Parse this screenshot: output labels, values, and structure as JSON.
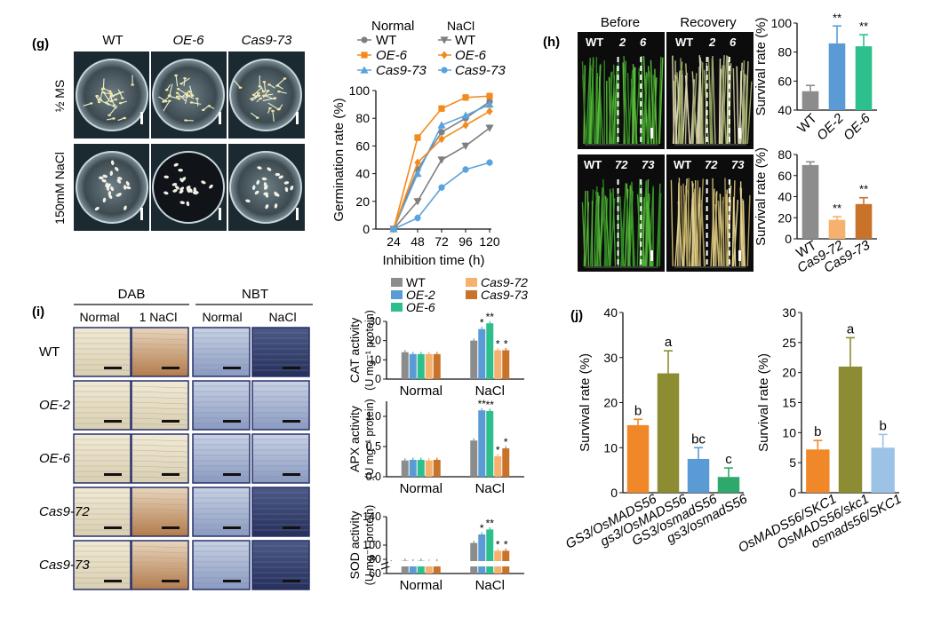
{
  "panels": {
    "g": "(g)",
    "h": "(h)",
    "i": "(i)",
    "j": "(j)"
  },
  "g_photos": {
    "cols": [
      "WT",
      "OE-6",
      "Cas9-73"
    ],
    "rows": [
      "½ MS",
      "150mM NaCl"
    ]
  },
  "g_chart_legend": {
    "normal_title": "Normal",
    "nacl_title": "NaCl",
    "normal_items": [
      "WT",
      "OE-6",
      "Cas9-73"
    ],
    "nacl_items": [
      "WT",
      "OE-6",
      "Cas9-73"
    ]
  },
  "h_photos": {
    "before": "Before",
    "recovery": "Recovery",
    "top_labels": [
      "WT",
      "2",
      "6"
    ],
    "bottom_labels": [
      "WT",
      "72",
      "73"
    ]
  },
  "i_photos": {
    "dab": "DAB",
    "nbt": "NBT",
    "cols": [
      "Normal",
      "1 NaCl",
      "Normal",
      "NaCl"
    ],
    "rows": [
      "WT",
      "OE-2",
      "OE-6",
      "Cas9-72",
      "Cas9-73"
    ]
  },
  "i_legend": [
    "WT",
    "OE-2",
    "OE-6",
    "Cas9-72",
    "Cas9-73"
  ],
  "colors": {
    "wt": "#8c8c8c",
    "oe2": "#5b9bd5",
    "oe6": "#2dbf8c",
    "cas72": "#f5b16d",
    "cas73": "#c8722a",
    "g_wt": "#7f7f7f",
    "g_oe6": "#f28a1e",
    "g_cas73": "#5aa3dc",
    "j_orange": "#f0882a",
    "j_olive": "#8c8c32",
    "j_blue": "#5b9bd5",
    "j_green": "#2fa86b",
    "j2_blue": "#9cc3e6"
  },
  "chart_data": [
    {
      "id": "g-germination",
      "type": "line",
      "xlabel": "Inhibition time (h)",
      "ylabel": "Germination rate (%)",
      "x": [
        24,
        48,
        72,
        96,
        120
      ],
      "ylim": [
        0,
        100
      ],
      "yticks": [
        0,
        20,
        40,
        60,
        80,
        100
      ],
      "series": [
        {
          "name": "WT",
          "group": "Normal",
          "marker": "circle",
          "color": "#7f7f7f",
          "values": [
            0,
            43,
            70,
            80,
            92
          ]
        },
        {
          "name": "OE-6",
          "group": "Normal",
          "marker": "square",
          "color": "#f28a1e",
          "values": [
            0,
            66,
            87,
            95,
            96
          ]
        },
        {
          "name": "Cas9-73",
          "group": "Normal",
          "marker": "triangle",
          "color": "#5aa3dc",
          "values": [
            0,
            40,
            75,
            82,
            90
          ]
        },
        {
          "name": "WT",
          "group": "NaCl",
          "marker": "triangle-down",
          "color": "#7f7f7f",
          "values": [
            0,
            20,
            50,
            60,
            73
          ]
        },
        {
          "name": "OE-6",
          "group": "NaCl",
          "marker": "diamond",
          "color": "#f28a1e",
          "values": [
            0,
            48,
            65,
            75,
            85
          ]
        },
        {
          "name": "Cas9-73",
          "group": "NaCl",
          "marker": "circle",
          "color": "#5aa3dc",
          "values": [
            0,
            8,
            30,
            43,
            48
          ]
        }
      ]
    },
    {
      "id": "h-survival-oe",
      "type": "bar",
      "ylabel": "Survival rate (%)",
      "categories": [
        "WT",
        "OE-2",
        "OE-6"
      ],
      "values": [
        53,
        86,
        84
      ],
      "errors": [
        4,
        12,
        8
      ],
      "sig": [
        "",
        "**",
        "**"
      ],
      "ylim": [
        40,
        100
      ],
      "yticks": [
        40,
        60,
        80,
        100
      ]
    },
    {
      "id": "h-survival-cas",
      "type": "bar",
      "ylabel": "Survival rate (%)",
      "categories": [
        "WT",
        "Cas9-72",
        "Cas9-73"
      ],
      "values": [
        70,
        18,
        33
      ],
      "errors": [
        3,
        3,
        6
      ],
      "sig": [
        "",
        "**",
        "**"
      ],
      "ylim": [
        0,
        80
      ],
      "yticks": [
        0,
        20,
        40,
        60,
        80
      ]
    },
    {
      "id": "i-cat",
      "type": "bar",
      "ylabel_line1": "CAT activity",
      "ylabel_line2": "(U mg⁻¹ protein)",
      "categories": [
        "Normal",
        "NaCl"
      ],
      "series_names": [
        "WT",
        "OE-2",
        "OE-6",
        "Cas9-72",
        "Cas9-73"
      ],
      "values": [
        [
          14,
          13,
          13,
          13,
          13
        ],
        [
          20,
          26,
          29,
          15,
          15
        ]
      ],
      "sig": [
        [
          "",
          "",
          "",
          "",
          ""
        ],
        [
          "",
          "*",
          "**",
          "*",
          "*"
        ]
      ],
      "ylim": [
        0,
        30
      ],
      "yticks": [
        0,
        10,
        20,
        30
      ]
    },
    {
      "id": "i-apx",
      "type": "bar",
      "ylabel_line1": "APX activity",
      "ylabel_line2": "(U mg⁻¹ protein)",
      "categories": [
        "Normal",
        "NaCl"
      ],
      "series_names": [
        "WT",
        "OE-2",
        "OE-6",
        "Cas9-72",
        "Cas9-73"
      ],
      "values": [
        [
          0.27,
          0.28,
          0.28,
          0.27,
          0.28
        ],
        [
          0.6,
          1.1,
          1.09,
          0.34,
          0.47
        ]
      ],
      "sig": [
        [
          "",
          "",
          "",
          "",
          ""
        ],
        [
          "",
          "**",
          "**",
          "*",
          "*"
        ]
      ],
      "ylim": [
        0,
        1.25
      ],
      "yticks": [
        0.0,
        0.5,
        1.0
      ],
      "yticklabels": [
        "0.0",
        "0.5",
        "1.0"
      ]
    },
    {
      "id": "i-sod",
      "type": "bar",
      "ylabel_line1": "SOD activity",
      "ylabel_line2": "(U mg⁻¹ protein)",
      "categories": [
        "Normal",
        "NaCl"
      ],
      "series_names": [
        "WT",
        "OE-2",
        "OE-6",
        "Cas9-72",
        "Cas9-73"
      ],
      "values": [
        [
          78,
          77,
          78,
          77,
          77
        ],
        [
          103,
          115,
          122,
          92,
          92
        ]
      ],
      "sig": [
        [
          "",
          "",
          "",
          "",
          ""
        ],
        [
          "",
          "*",
          "**",
          "*",
          "*"
        ]
      ],
      "ylim": [
        60,
        140
      ],
      "yticks": [
        60,
        80,
        100,
        140
      ],
      "axis_break": true
    },
    {
      "id": "j-survival-gs3",
      "type": "bar",
      "ylabel": "Survival rate (%)",
      "categories": [
        "GS3/OsMADS56",
        "gs3/OsMADS56",
        "GS3/osmadS56",
        "gs3/osmadS56"
      ],
      "values": [
        15,
        26.5,
        7.5,
        3.5
      ],
      "errors": [
        1.3,
        5,
        2.5,
        2
      ],
      "letters": [
        "b",
        "a",
        "bc",
        "c"
      ],
      "ylim": [
        0,
        40
      ],
      "yticks": [
        0,
        10,
        20,
        30,
        40
      ]
    },
    {
      "id": "j-survival-skc1",
      "type": "bar",
      "ylabel": "Survival rate (%)",
      "categories": [
        "OsMADS56/SKC1",
        "OsMADS56/skc1",
        "osmads56/SKC1"
      ],
      "values": [
        7.2,
        21,
        7.5
      ],
      "errors": [
        1.5,
        4.8,
        2.2
      ],
      "letters": [
        "b",
        "a",
        "b"
      ],
      "ylim": [
        0,
        30
      ],
      "yticks": [
        0,
        5,
        10,
        15,
        20,
        25,
        30
      ]
    }
  ]
}
